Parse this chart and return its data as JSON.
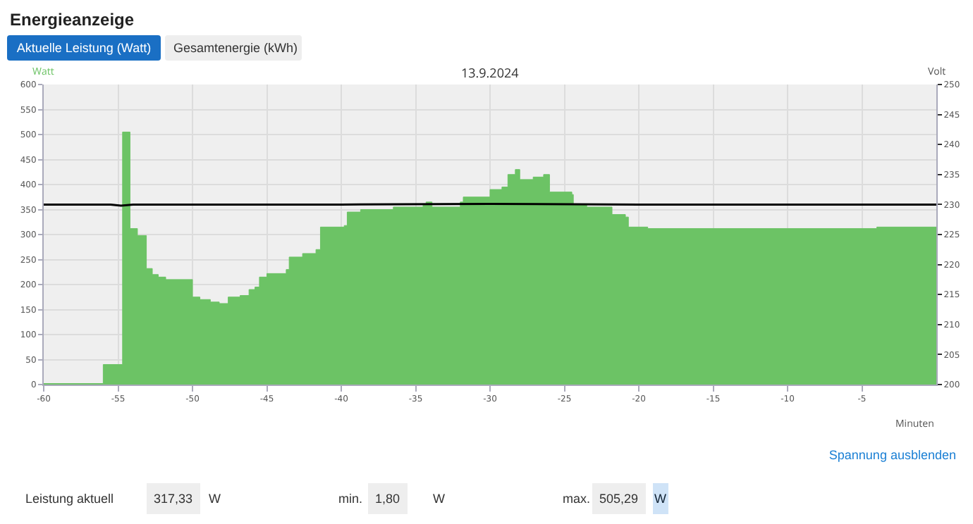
{
  "chart_data": {
    "type": "area",
    "title": "Energieanzeige",
    "subtitle": "13.9.2024",
    "xlabel": "Minuten",
    "ylabel": "Watt",
    "y2label": "Volt",
    "annotations": [
      "Aktuelle Leistung (Watt)",
      "Gesamtenergie (kWh)",
      "Spannung ausblenden",
      "Leistung aktuell",
      "317,33",
      "W",
      "min.",
      "1,80",
      "W",
      "max.",
      "505,29",
      "W"
    ],
    "xlim": [
      -60,
      0
    ],
    "xticks": [
      -60,
      -55,
      -50,
      -45,
      -40,
      -35,
      -30,
      -25,
      -20,
      -15,
      -10,
      -5
    ],
    "ylim": [
      0,
      600
    ],
    "yticks": [
      0,
      50,
      100,
      150,
      200,
      250,
      300,
      350,
      400,
      450,
      500,
      550,
      600
    ],
    "y2lim": [
      200,
      250
    ],
    "y2ticks": [
      200,
      205,
      210,
      215,
      220,
      225,
      230,
      235,
      240,
      245,
      250
    ],
    "grid": true,
    "series": [
      {
        "color": "#6cc365",
        "x": [
          -60,
          -56,
          -54.7,
          -54.2,
          -53.7,
          -53.1,
          -52.7,
          -52.3,
          -51.8,
          -50,
          -49.5,
          -48.8,
          -48.2,
          -47.6,
          -46.8,
          -46.2,
          -45.8,
          -45.5,
          -45,
          -43.7,
          -43.5,
          -42.6,
          -41.7,
          -41.4,
          -39.8,
          -39.6,
          -38.7,
          -36.5,
          -34.5,
          -34.3,
          -33.9,
          -32,
          -31.8,
          -30,
          -29.2,
          -28.8,
          -28.3,
          -28,
          -27.1,
          -26.4,
          -26,
          -24.5,
          -24.4,
          -23.5,
          -21.8,
          -20.9,
          -20.7,
          -19.4,
          -4,
          0
        ],
        "values": [
          2,
          40,
          505,
          312,
          298,
          232,
          220,
          215,
          210,
          175,
          170,
          165,
          162,
          175,
          178,
          190,
          195,
          215,
          222,
          230,
          255,
          262,
          270,
          315,
          318,
          345,
          350,
          355,
          360,
          365,
          355,
          365,
          375,
          390,
          395,
          420,
          430,
          410,
          415,
          420,
          385,
          380,
          360,
          355,
          340,
          335,
          315,
          312,
          315,
          315
        ]
      },
      {
        "type": "line",
        "axis": "y2",
        "color": "#000000",
        "x": [
          -60,
          -55.5,
          -54.8,
          -54,
          -40,
          -30,
          -20,
          -10,
          0
        ],
        "values": [
          230,
          230,
          229.8,
          230,
          230,
          230.1,
          230,
          230,
          230
        ]
      }
    ]
  }
}
